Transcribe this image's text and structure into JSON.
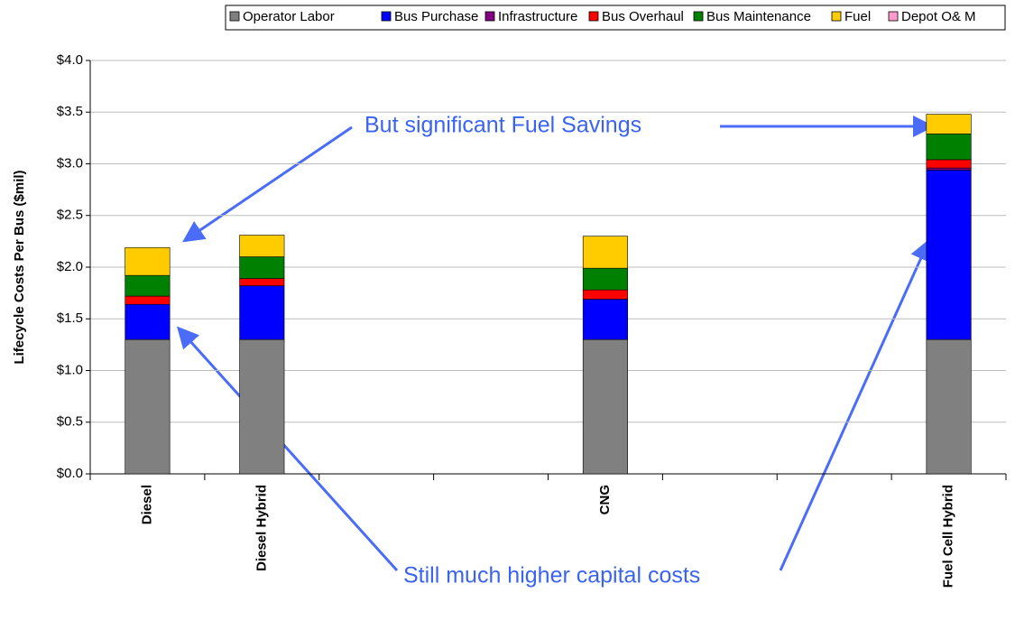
{
  "chart_data": {
    "type": "stacked-bar",
    "y_label": "Lifecycle Costs Per Bus ($mil)",
    "categories": [
      "Diesel",
      "Diesel Hybrid",
      null,
      null,
      "CNG",
      null,
      null,
      "Fuel Cell Hybrid"
    ],
    "series": [
      {
        "name": "Operator Labor",
        "color": "#808080",
        "values": [
          1.3,
          1.3,
          null,
          null,
          1.3,
          null,
          null,
          1.3
        ]
      },
      {
        "name": "Bus Purchase",
        "color": "#0000ff",
        "values": [
          0.34,
          0.52,
          null,
          null,
          0.39,
          null,
          null,
          1.64
        ]
      },
      {
        "name": "Infrastructure",
        "color": "#800080",
        "values": [
          0,
          0,
          null,
          null,
          0,
          null,
          null,
          0.02
        ]
      },
      {
        "name": "Bus Overhaul",
        "color": "#ff0000",
        "values": [
          0.08,
          0.07,
          null,
          null,
          0.09,
          null,
          null,
          0.08
        ]
      },
      {
        "name": "Bus Maintenance",
        "color": "#008000",
        "values": [
          0.2,
          0.21,
          null,
          null,
          0.21,
          null,
          null,
          0.25
        ]
      },
      {
        "name": "Fuel",
        "color": "#ffcc00",
        "values": [
          0.27,
          0.21,
          null,
          null,
          0.31,
          null,
          null,
          0.19
        ]
      },
      {
        "name": "Depot O& M",
        "color": "#ff99cc",
        "values": [
          0,
          0,
          null,
          null,
          0,
          null,
          null,
          0
        ]
      }
    ],
    "ylim": [
      0,
      4
    ],
    "yticks": [
      {
        "value": 0,
        "label": "$0.0"
      },
      {
        "value": 0.5,
        "label": "$0.5"
      },
      {
        "value": 1,
        "label": "$1.0"
      },
      {
        "value": 1.5,
        "label": "$1.5"
      },
      {
        "value": 2,
        "label": "$2.0"
      },
      {
        "value": 2.5,
        "label": "$2.5"
      },
      {
        "value": 3,
        "label": "$3.0"
      },
      {
        "value": 3.5,
        "label": "$3.5"
      },
      {
        "value": 4,
        "label": "$4.0"
      }
    ],
    "grid": true,
    "annotations": [
      "But significant Fuel Savings",
      "Still much higher capital costs"
    ]
  }
}
